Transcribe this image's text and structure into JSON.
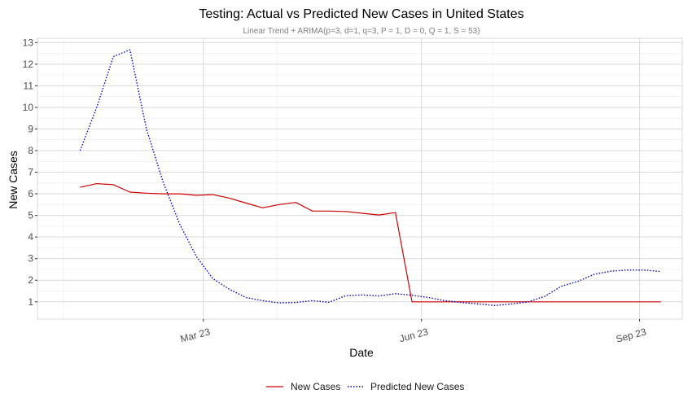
{
  "chart_data": {
    "type": "line",
    "title": "Testing: Actual vs Predicted New Cases in United States",
    "subtitle": "Linear Trend + ARIMA(p=3, d=1, q=3, P = 1, D = 0, Q = 1, S = 53)",
    "xlabel": "Date",
    "ylabel": "New Cases",
    "ylim": [
      0.2,
      13.2
    ],
    "y_ticks": [
      1,
      2,
      3,
      4,
      5,
      6,
      7,
      8,
      9,
      10,
      11,
      12,
      13
    ],
    "xlim": [
      "2022-12-21",
      "2023-09-19"
    ],
    "x_ticks": [
      {
        "date": "2023-03-01",
        "label": "Mar 23"
      },
      {
        "date": "2023-06-01",
        "label": "Jun 23"
      },
      {
        "date": "2023-09-01",
        "label": "Sep 23"
      }
    ],
    "x_minor_ticks": [
      "2023-01-01",
      "2023-04-01",
      "2023-07-01"
    ],
    "grid": true,
    "legend_position": "bottom",
    "x": [
      "2023-01-08",
      "2023-01-15",
      "2023-01-22",
      "2023-01-29",
      "2023-02-05",
      "2023-02-12",
      "2023-02-19",
      "2023-02-26",
      "2023-03-05",
      "2023-03-12",
      "2023-03-19",
      "2023-03-26",
      "2023-04-02",
      "2023-04-09",
      "2023-04-16",
      "2023-04-23",
      "2023-04-30",
      "2023-05-07",
      "2023-05-14",
      "2023-05-21",
      "2023-05-28",
      "2023-06-04",
      "2023-06-11",
      "2023-06-18",
      "2023-06-25",
      "2023-07-02",
      "2023-07-09",
      "2023-07-16",
      "2023-07-23",
      "2023-07-30",
      "2023-08-06",
      "2023-08-13",
      "2023-08-20",
      "2023-08-27",
      "2023-09-03",
      "2023-09-10"
    ],
    "series": [
      {
        "name": "New Cases",
        "color": "#cc0000",
        "line_style": "solid",
        "values": [
          6.3,
          6.47,
          6.42,
          6.08,
          6.03,
          6.0,
          6.0,
          5.93,
          5.96,
          5.8,
          5.57,
          5.35,
          5.5,
          5.6,
          5.2,
          5.2,
          5.18,
          5.1,
          5.02,
          5.13,
          1.0,
          1.0,
          1.0,
          1.0,
          1.0,
          1.0,
          1.0,
          1.0,
          1.0,
          1.0,
          1.0,
          1.0,
          1.0,
          1.0,
          1.0,
          1.0
        ]
      },
      {
        "name": "Predicted New Cases",
        "color": "#0000cc",
        "line_style": "dotted",
        "values": [
          8.0,
          10.0,
          12.35,
          12.67,
          9.0,
          6.55,
          4.6,
          3.1,
          2.07,
          1.58,
          1.2,
          1.05,
          0.95,
          0.97,
          1.05,
          0.98,
          1.28,
          1.32,
          1.27,
          1.38,
          1.3,
          1.2,
          1.05,
          0.97,
          0.9,
          0.83,
          0.9,
          1.0,
          1.25,
          1.72,
          1.95,
          2.28,
          2.42,
          2.47,
          2.47,
          2.4
        ]
      }
    ]
  }
}
